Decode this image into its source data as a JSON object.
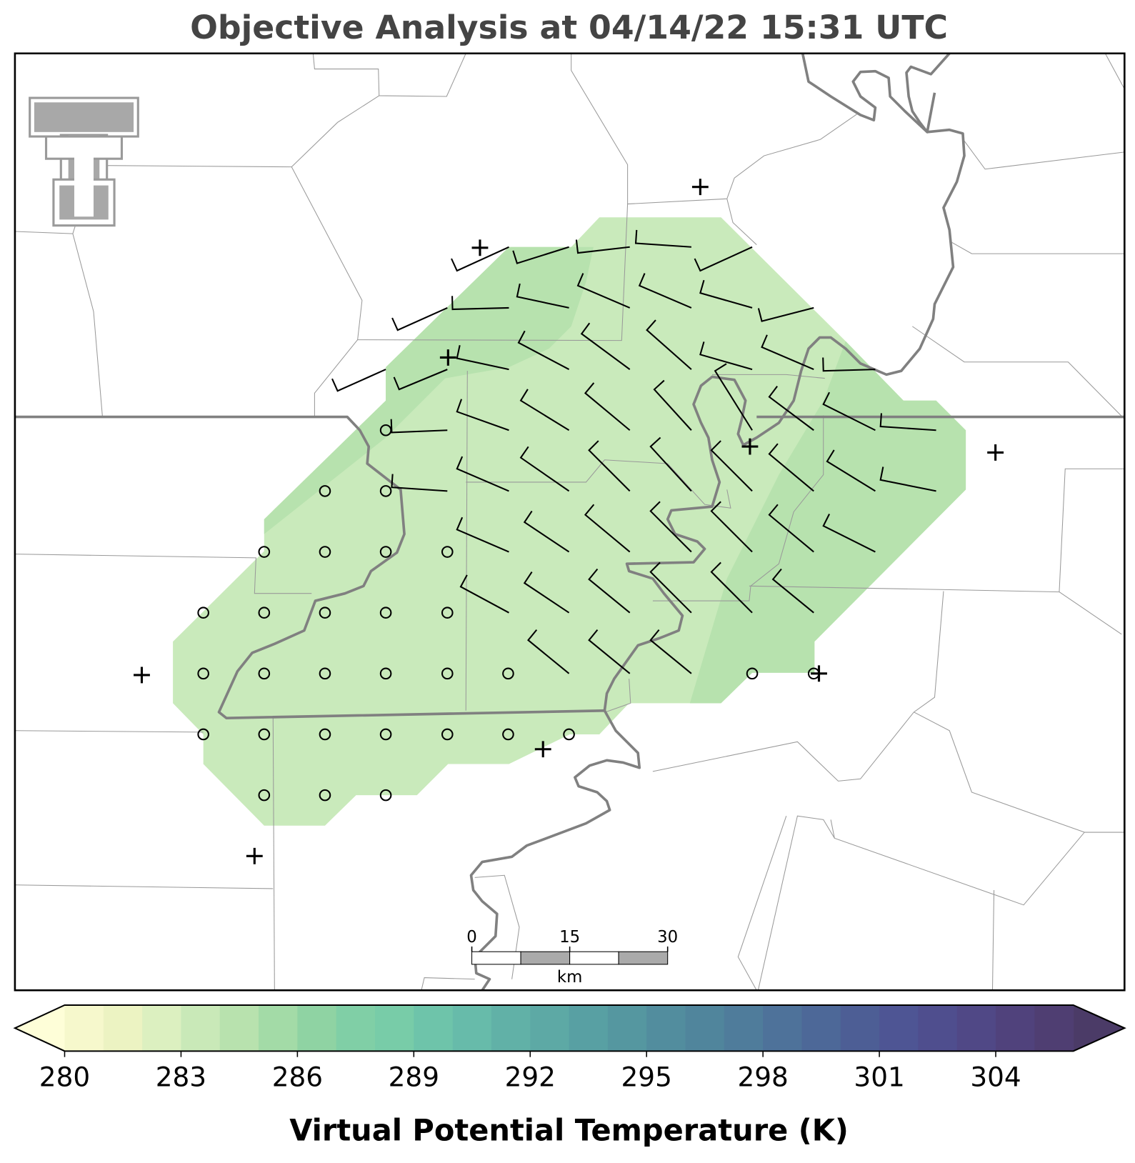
{
  "title": "Objective Analysis at 04/14/22 15:31 UTC",
  "scale_bar": {
    "ticks": [
      0,
      15,
      30
    ],
    "unit": "km",
    "lim": [
      0,
      30
    ]
  },
  "colorbar": {
    "label": "Virtual Potential Temperature (K)",
    "lim": [
      280,
      306
    ],
    "ticks": [
      280,
      283,
      286,
      289,
      292,
      295,
      298,
      301,
      304
    ],
    "colors": [
      "#f6f8cc",
      "#ecf3c2",
      "#dcf0c0",
      "#c9e9b8",
      "#b8e2ae",
      "#a3dba7",
      "#8fd3a3",
      "#80cfa6",
      "#78cca8",
      "#6ec4aa",
      "#67bbaa",
      "#61b1a7",
      "#5da9a5",
      "#58a0a3",
      "#5597a0",
      "#528d9e",
      "#50859c",
      "#4f7c9b",
      "#4e729a",
      "#4d6898",
      "#4d5e95",
      "#4e5594",
      "#4f4e8e",
      "#504886",
      "#50427c",
      "#4f3e72"
    ],
    "under_color": "#fefed8",
    "over_color": "#4b3b67"
  }
}
